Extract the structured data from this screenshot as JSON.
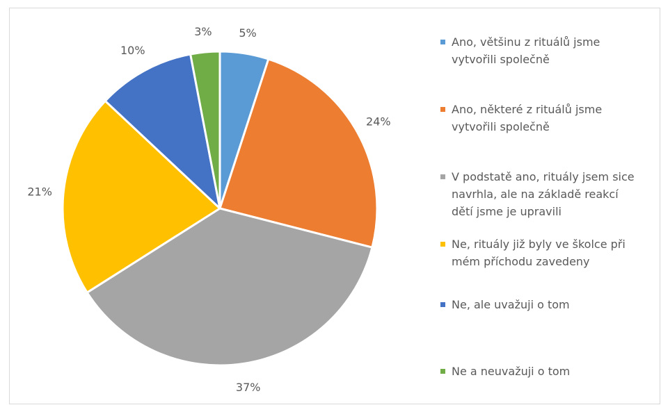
{
  "chart_data": {
    "type": "pie",
    "title": "",
    "unit": "%",
    "slices": [
      {
        "label": "Ano, většinu z rituálů jsme vytvořili společně",
        "value": 5,
        "display": "5%",
        "color": "#5B9BD5"
      },
      {
        "label": "Ano, některé z rituálů jsme vytvořili společně",
        "value": 24,
        "display": "24%",
        "color": "#ED7D31"
      },
      {
        "label": "V podstatě ano, rituály jsem sice navrhla, ale na základě reakcí dětí jsme je upravili",
        "value": 37,
        "display": "37%",
        "color": "#A5A5A5"
      },
      {
        "label": "Ne, rituály již byly ve školce při mém příchodu zavedeny",
        "value": 21,
        "display": "21%",
        "color": "#FFC000"
      },
      {
        "label": "Ne, ale uvažuji o tom",
        "value": 10,
        "display": "10%",
        "color": "#4472C4"
      },
      {
        "label": "Ne a neuvažuji o tom",
        "value": 3,
        "display": "3%",
        "color": "#70AD47"
      }
    ],
    "legend_position": "right",
    "start_angle": "top",
    "direction": "clockwise"
  },
  "legend": {
    "items": [
      {
        "text": "Ano, většinu z rituálů jsme\nvytvořili společně"
      },
      {
        "text": "Ano, některé z rituálů jsme\nvytvořili společně"
      },
      {
        "text": "V podstatě ano, rituály jsem sice\nnavrhla, ale na základě reakcí\ndětí jsme je upravili"
      },
      {
        "text": "Ne, rituály již byly ve školce při\nmém příchodu zavedeny"
      },
      {
        "text": "Ne, ale uvažuji o tom"
      },
      {
        "text": "Ne a neuvažuji o tom"
      }
    ]
  }
}
